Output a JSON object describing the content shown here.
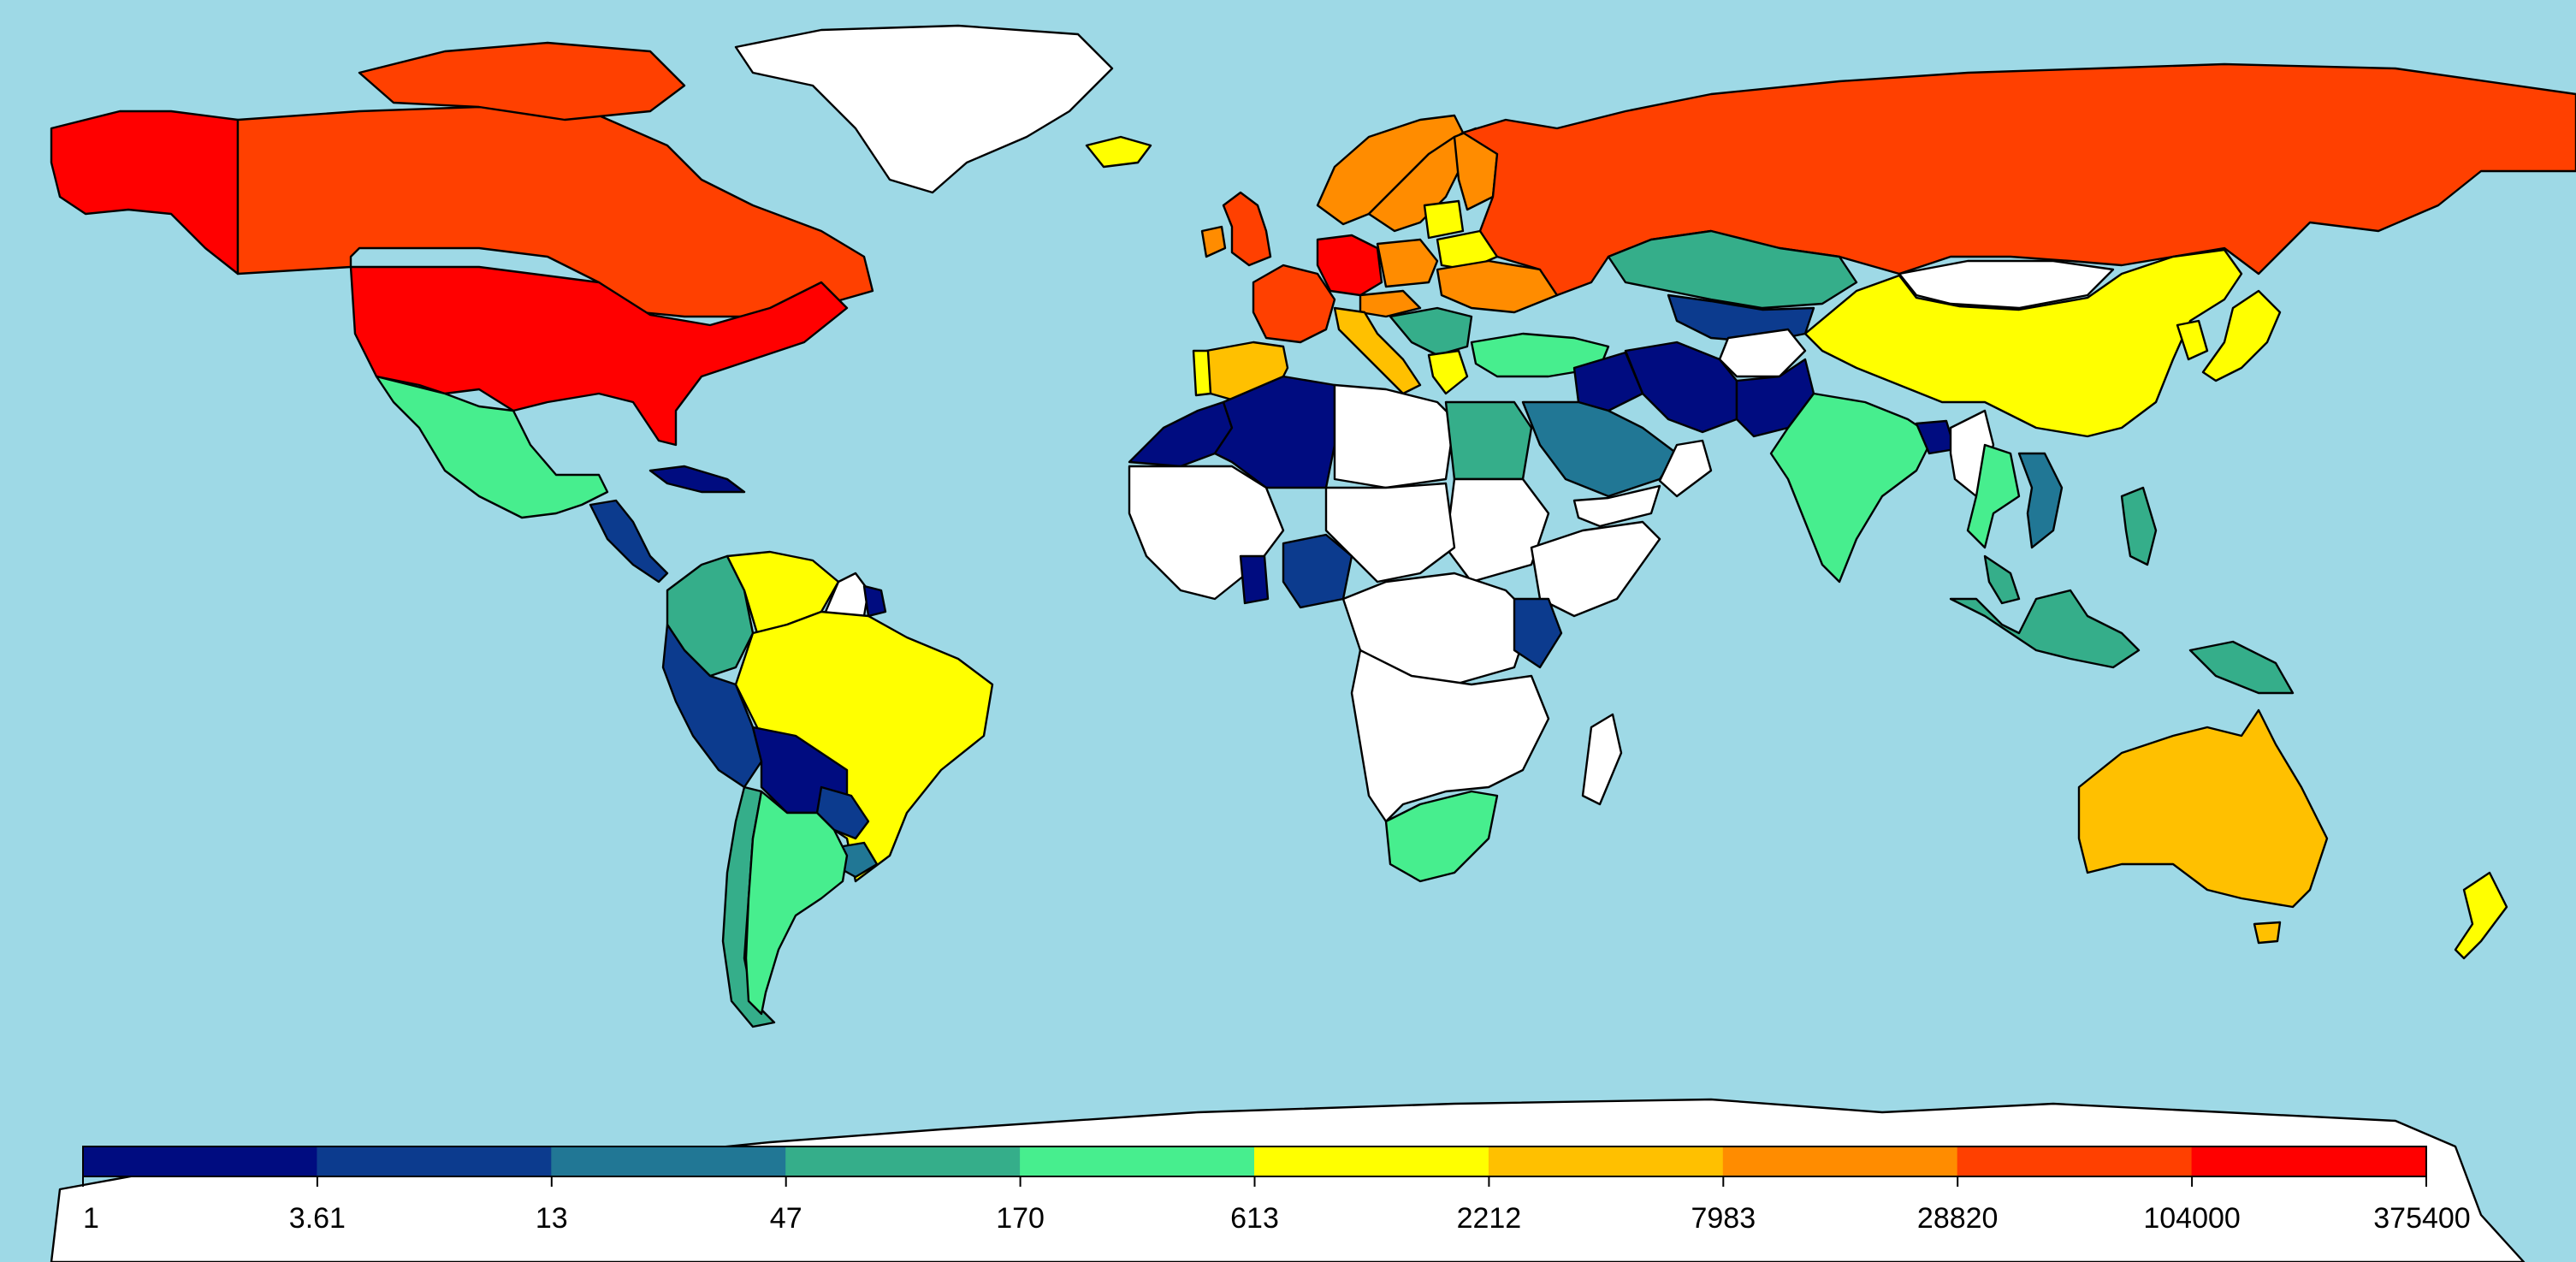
{
  "map": {
    "ocean_color": "#9ED9E6",
    "no_data_color": "#FFFFFF",
    "border_color": "#000000"
  },
  "legend": {
    "breaks": [
      "1",
      "3.61",
      "13",
      "47",
      "170",
      "613",
      "2212",
      "7983",
      "28820",
      "104000",
      "375400"
    ],
    "colors": [
      "#000C80",
      "#0C3B8E",
      "#217795",
      "#35AE8A",
      "#47EE8E",
      "#FFFF00",
      "#FFC000",
      "#FF8C00",
      "#FF4000",
      "#FF0000"
    ]
  },
  "regions": [
    {
      "name": "Greenland",
      "class": null
    },
    {
      "name": "Alaska",
      "class": 9
    },
    {
      "name": "Canada",
      "class": 8
    },
    {
      "name": "United States",
      "class": 9
    },
    {
      "name": "Mexico",
      "class": 4
    },
    {
      "name": "Central America",
      "class": 1
    },
    {
      "name": "Cuba",
      "class": 0
    },
    {
      "name": "Colombia",
      "class": 3
    },
    {
      "name": "Venezuela",
      "class": 5
    },
    {
      "name": "Guyana",
      "class": null
    },
    {
      "name": "Suriname",
      "class": 0
    },
    {
      "name": "Peru",
      "class": 1
    },
    {
      "name": "Brazil",
      "class": 5
    },
    {
      "name": "Bolivia",
      "class": 0
    },
    {
      "name": "Paraguay",
      "class": 1
    },
    {
      "name": "Uruguay",
      "class": 2
    },
    {
      "name": "Chile",
      "class": 3
    },
    {
      "name": "Argentina",
      "class": 4
    },
    {
      "name": "Iceland",
      "class": 5
    },
    {
      "name": "Norway",
      "class": 7
    },
    {
      "name": "Sweden",
      "class": 7
    },
    {
      "name": "Finland",
      "class": 7
    },
    {
      "name": "United Kingdom",
      "class": 8
    },
    {
      "name": "Ireland",
      "class": 7
    },
    {
      "name": "France",
      "class": 8
    },
    {
      "name": "Spain",
      "class": 6
    },
    {
      "name": "Portugal",
      "class": 5
    },
    {
      "name": "Germany",
      "class": 9
    },
    {
      "name": "Poland",
      "class": 7
    },
    {
      "name": "Baltics",
      "class": 5
    },
    {
      "name": "Belarus",
      "class": 5
    },
    {
      "name": "Ukraine",
      "class": 7
    },
    {
      "name": "Italy",
      "class": 6
    },
    {
      "name": "Austria",
      "class": 7
    },
    {
      "name": "Balkans",
      "class": 3
    },
    {
      "name": "Greece",
      "class": 5
    },
    {
      "name": "Turkey",
      "class": 4
    },
    {
      "name": "Russia",
      "class": 8
    },
    {
      "name": "Kazakhstan",
      "class": 3
    },
    {
      "name": "Mongolia",
      "class": null
    },
    {
      "name": "China",
      "class": 5
    },
    {
      "name": "Japan",
      "class": 5
    },
    {
      "name": "Korea",
      "class": 5
    },
    {
      "name": "Central Asia",
      "class": 1
    },
    {
      "name": "Afghanistan",
      "class": null
    },
    {
      "name": "Iran",
      "class": 0
    },
    {
      "name": "Pakistan",
      "class": 0
    },
    {
      "name": "Iraq",
      "class": 0
    },
    {
      "name": "Saudi Arabia",
      "class": 2
    },
    {
      "name": "Yemen",
      "class": null
    },
    {
      "name": "Oman",
      "class": null
    },
    {
      "name": "India",
      "class": 4
    },
    {
      "name": "Bangladesh",
      "class": 0
    },
    {
      "name": "Myanmar",
      "class": null
    },
    {
      "name": "Thailand",
      "class": 4
    },
    {
      "name": "Vietnam",
      "class": 2
    },
    {
      "name": "Philippines",
      "class": 3
    },
    {
      "name": "Malaysia",
      "class": 3
    },
    {
      "name": "Indonesia",
      "class": 3
    },
    {
      "name": "Papua New Guinea",
      "class": 3
    },
    {
      "name": "Australia",
      "class": 6
    },
    {
      "name": "Tasmania",
      "class": 6
    },
    {
      "name": "New Zealand",
      "class": 5
    },
    {
      "name": "Morocco",
      "class": 0
    },
    {
      "name": "Algeria",
      "class": 0
    },
    {
      "name": "Libya",
      "class": null
    },
    {
      "name": "Egypt",
      "class": 3
    },
    {
      "name": "Sudan",
      "class": null
    },
    {
      "name": "West Africa",
      "class": null
    },
    {
      "name": "Sahel",
      "class": null
    },
    {
      "name": "Ghana",
      "class": 0
    },
    {
      "name": "Nigeria",
      "class": 1
    },
    {
      "name": "Central Africa",
      "class": null
    },
    {
      "name": "Horn of Africa",
      "class": null
    },
    {
      "name": "Kenya",
      "class": 1
    },
    {
      "name": "Southern Africa",
      "class": null
    },
    {
      "name": "South Africa",
      "class": 4
    },
    {
      "name": "Madagascar",
      "class": null
    },
    {
      "name": "Antarctica",
      "class": null
    }
  ]
}
